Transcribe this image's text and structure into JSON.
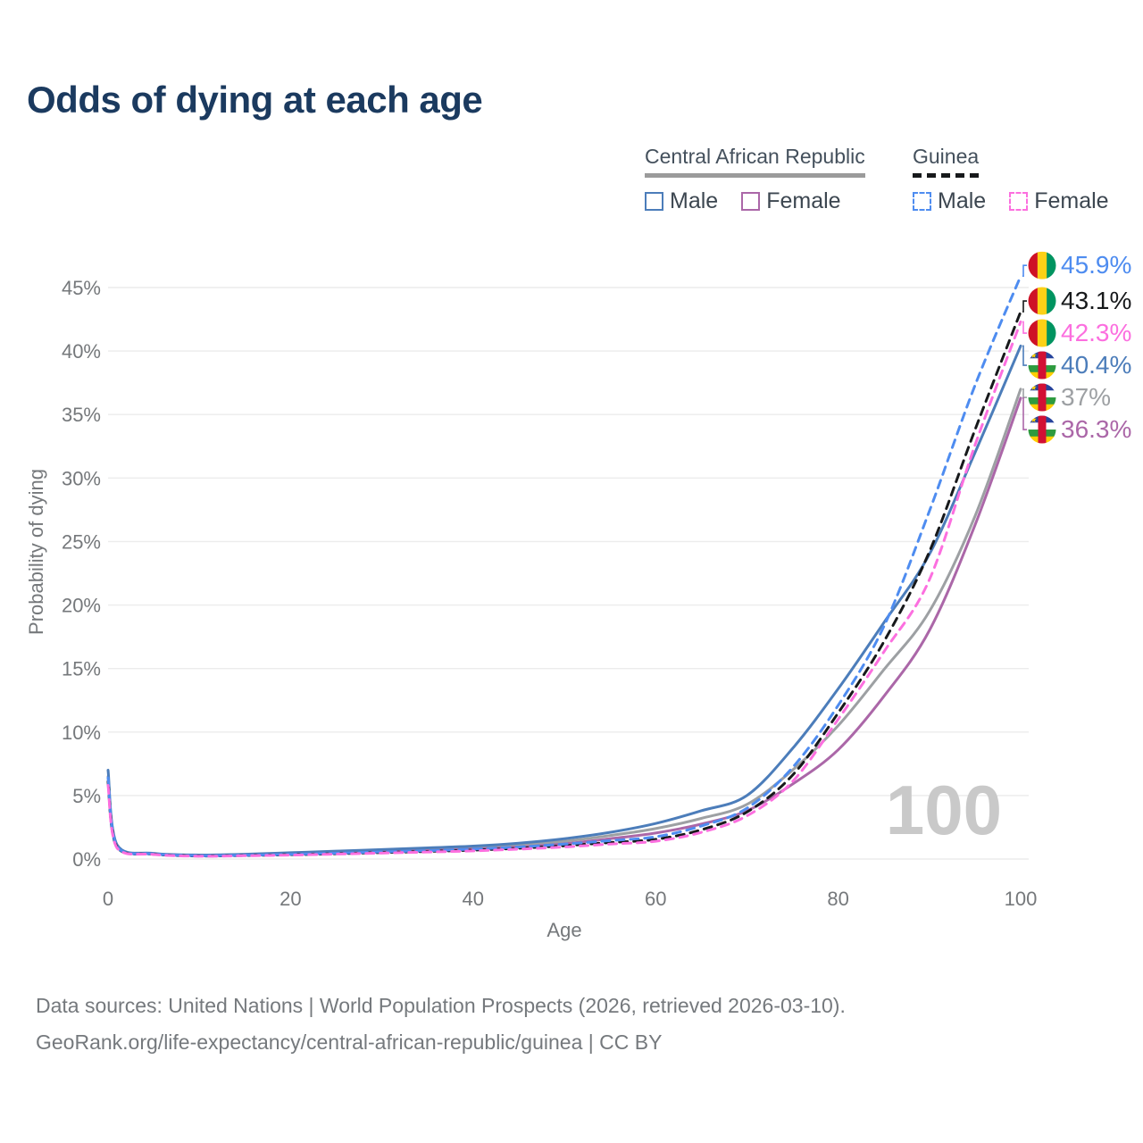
{
  "title": "Odds of dying at each age",
  "legend": {
    "groups": [
      {
        "name": "Central African Republic",
        "underline_style": "solid",
        "underline_color": "#9b9b9b",
        "items": [
          {
            "label": "Male",
            "color": "#4c7dba",
            "dashed": false
          },
          {
            "label": "Female",
            "color": "#ab67a8",
            "dashed": false
          }
        ]
      },
      {
        "name": "Guinea",
        "underline_style": "dashed",
        "underline_color": "#17191b",
        "items": [
          {
            "label": "Male",
            "color": "#4e8cf0",
            "dashed": true
          },
          {
            "label": "Female",
            "color": "#fc6fdf",
            "dashed": true
          }
        ]
      }
    ]
  },
  "watermark": "100",
  "footer": {
    "line1": "Data sources: United Nations | World Population Prospects (2026, retrieved 2026-03-10).",
    "line2": "GeoRank.org/life-expectancy/central-african-republic/guinea | CC BY"
  },
  "chart_data": {
    "type": "line",
    "title": "Odds of dying at each age",
    "xlabel": "Age",
    "ylabel": "Probability of dying",
    "xlim": [
      0,
      100
    ],
    "ylim": [
      0,
      47
    ],
    "grid": "horizontal",
    "legend_position": "top-right",
    "x_ticks": [
      0,
      20,
      40,
      60,
      80,
      100
    ],
    "y_tick_values": [
      0,
      5,
      10,
      15,
      20,
      25,
      30,
      35,
      40,
      45
    ],
    "y_tick_labels": [
      "0%",
      "5%",
      "10%",
      "15%",
      "20%",
      "25%",
      "30%",
      "35%",
      "40%",
      "45%"
    ],
    "ages": [
      0,
      1,
      5,
      10,
      15,
      20,
      25,
      30,
      35,
      40,
      45,
      50,
      55,
      60,
      65,
      70,
      75,
      80,
      85,
      90,
      95,
      100
    ],
    "series": [
      {
        "key": "car-total",
        "label": "Central African Republic",
        "flag": "car",
        "color": "#9da0a3",
        "dashed": false,
        "end_label": "37%",
        "values": [
          6.5,
          1.0,
          0.42,
          0.29,
          0.34,
          0.44,
          0.54,
          0.65,
          0.76,
          0.9,
          1.1,
          1.4,
          1.85,
          2.4,
          3.2,
          4.3,
          7.0,
          10.5,
          14.9,
          19.5,
          27.0,
          37.0
        ]
      },
      {
        "key": "car-female",
        "label": "Central African Republic Female",
        "flag": "car",
        "color": "#ab67a8",
        "dashed": false,
        "end_label": "36.3%",
        "values": [
          6.1,
          0.95,
          0.4,
          0.27,
          0.31,
          0.4,
          0.48,
          0.57,
          0.66,
          0.78,
          0.95,
          1.2,
          1.6,
          2.05,
          2.75,
          3.8,
          5.9,
          8.6,
          12.8,
          18.0,
          26.3,
          36.3
        ]
      },
      {
        "key": "car-male",
        "label": "Central African Republic Male",
        "flag": "car",
        "color": "#4c7dba",
        "dashed": false,
        "end_label": "40.4%",
        "values": [
          7.0,
          1.1,
          0.45,
          0.32,
          0.38,
          0.5,
          0.62,
          0.75,
          0.88,
          1.02,
          1.25,
          1.6,
          2.1,
          2.8,
          3.8,
          5.0,
          8.7,
          13.4,
          18.6,
          24.0,
          32.0,
          40.4
        ]
      },
      {
        "key": "guinea-total",
        "label": "Guinea",
        "flag": "guinea",
        "color": "#17191b",
        "dashed": true,
        "end_label": "43.1%",
        "values": [
          6.1,
          0.9,
          0.38,
          0.24,
          0.28,
          0.34,
          0.42,
          0.51,
          0.6,
          0.7,
          0.85,
          1.05,
          1.3,
          1.55,
          2.3,
          3.7,
          6.6,
          11.5,
          17.1,
          24.2,
          33.8,
          43.1
        ]
      },
      {
        "key": "guinea-male",
        "label": "Guinea Male",
        "flag": "guinea",
        "color": "#4e8cf0",
        "dashed": true,
        "end_label": "45.9%",
        "values": [
          6.4,
          0.95,
          0.4,
          0.26,
          0.3,
          0.37,
          0.46,
          0.56,
          0.66,
          0.78,
          0.95,
          1.18,
          1.45,
          1.75,
          2.6,
          4.0,
          7.2,
          12.1,
          18.3,
          27.4,
          37.3,
          45.9
        ]
      },
      {
        "key": "guinea-female",
        "label": "Guinea Female",
        "flag": "guinea",
        "color": "#fc6fdf",
        "dashed": true,
        "end_label": "42.3%",
        "values": [
          5.8,
          0.85,
          0.36,
          0.22,
          0.26,
          0.31,
          0.39,
          0.47,
          0.55,
          0.64,
          0.78,
          0.95,
          1.18,
          1.4,
          2.1,
          3.4,
          6.1,
          11.0,
          16.3,
          22.0,
          32.6,
          42.3
        ]
      }
    ],
    "flag_colors": {
      "guinea": {
        "red": "#CE1126",
        "yellow": "#FCD116",
        "green": "#009460"
      },
      "car": {
        "blue": "#27449c",
        "white": "#ffffff",
        "green": "#2e9a3f",
        "yellow": "#ffce00",
        "red": "#d21034",
        "star": "#ffce00"
      }
    }
  }
}
